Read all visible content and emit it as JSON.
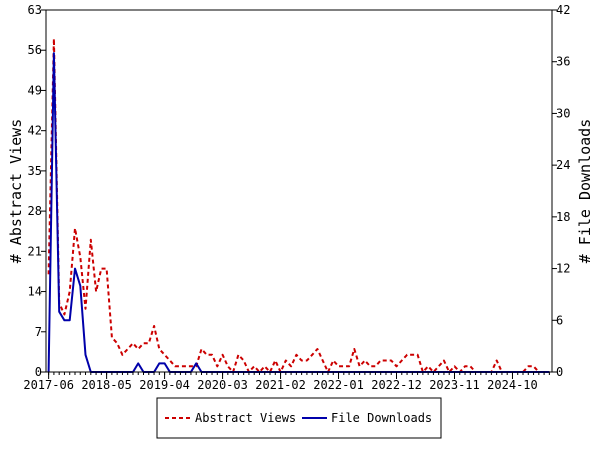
{
  "chart_data": {
    "type": "line",
    "x": [
      "2017-06",
      "2017-07",
      "2017-08",
      "2017-09",
      "2017-10",
      "2017-11",
      "2017-12",
      "2018-01",
      "2018-02",
      "2018-03",
      "2018-04",
      "2018-05",
      "2018-06",
      "2018-07",
      "2018-08",
      "2018-09",
      "2018-10",
      "2018-11",
      "2018-12",
      "2019-01",
      "2019-02",
      "2019-03",
      "2019-04",
      "2019-05",
      "2019-06",
      "2019-07",
      "2019-08",
      "2019-09",
      "2019-10",
      "2019-11",
      "2019-12",
      "2020-01",
      "2020-02",
      "2020-03",
      "2020-04",
      "2020-05",
      "2020-06",
      "2020-07",
      "2020-08",
      "2020-09",
      "2020-10",
      "2020-11",
      "2020-12",
      "2021-01",
      "2021-02",
      "2021-03",
      "2021-04",
      "2021-05",
      "2021-06",
      "2021-07",
      "2021-08",
      "2021-09",
      "2021-10",
      "2021-11",
      "2021-12",
      "2022-01",
      "2022-02",
      "2022-03",
      "2022-04",
      "2022-05",
      "2022-06",
      "2022-07",
      "2022-08",
      "2022-09",
      "2022-10",
      "2022-11",
      "2022-12",
      "2023-01",
      "2023-02",
      "2023-03",
      "2023-04",
      "2023-05",
      "2023-06",
      "2023-07",
      "2023-08",
      "2023-09",
      "2023-10",
      "2023-11",
      "2023-12",
      "2024-01",
      "2024-02",
      "2024-03",
      "2024-04",
      "2024-05",
      "2024-06",
      "2024-07",
      "2024-08",
      "2024-09",
      "2024-10",
      "2024-11",
      "2024-12",
      "2025-01",
      "2025-02",
      "2025-03",
      "2025-04",
      "2025-05"
    ],
    "series": [
      {
        "name": "Abstract Views",
        "axis": "left",
        "color": "#cc0000",
        "dash": true,
        "values": [
          17,
          58,
          12,
          10,
          14,
          25,
          20,
          11,
          23,
          14,
          18,
          18,
          6,
          5,
          3,
          4,
          5,
          4,
          5,
          5,
          8,
          4,
          3,
          2,
          1,
          1,
          1,
          1,
          1,
          4,
          3,
          3,
          1,
          3,
          1,
          0,
          3,
          2,
          0,
          1,
          0,
          1,
          0,
          2,
          0,
          2,
          1,
          3,
          2,
          2,
          3,
          4,
          2,
          0,
          2,
          1,
          1,
          1,
          4,
          1,
          2,
          1,
          1,
          2,
          2,
          2,
          1,
          2,
          3,
          3,
          3,
          0,
          1,
          0,
          1,
          2,
          0,
          1,
          0,
          1,
          1,
          0,
          0,
          0,
          0,
          2,
          0,
          0,
          0,
          0,
          0,
          1,
          1,
          0,
          0,
          0
        ]
      },
      {
        "name": "File Downloads",
        "axis": "right",
        "color": "#0000aa",
        "dash": false,
        "values": [
          0,
          37,
          7,
          6,
          6,
          12,
          10,
          2,
          0,
          0,
          0,
          0,
          0,
          0,
          0,
          0,
          0,
          1,
          0,
          0,
          0,
          1,
          1,
          0,
          0,
          0,
          0,
          0,
          1,
          0,
          0,
          0,
          0,
          0,
          0,
          0,
          0,
          0,
          0,
          0,
          0,
          0,
          0,
          0,
          0,
          0,
          0,
          0,
          0,
          0,
          0,
          0,
          0,
          0,
          0,
          0,
          0,
          0,
          0,
          0,
          0,
          0,
          0,
          0,
          0,
          0,
          0,
          0,
          0,
          0,
          0,
          0,
          0,
          0,
          0,
          0,
          0,
          0,
          0,
          0,
          0,
          0,
          0,
          0,
          0,
          0,
          0,
          0,
          0,
          0,
          0,
          0,
          0,
          0,
          0,
          0
        ]
      }
    ],
    "xtick_labels": [
      "2017-06",
      "2018-05",
      "2019-04",
      "2020-03",
      "2021-02",
      "2022-01",
      "2022-12",
      "2023-11",
      "2024-10"
    ],
    "ylabel": "# Abstract Views",
    "ylabel_right": "# File Downloads",
    "ylim": [
      0,
      63
    ],
    "yticks": [
      "0",
      "7",
      "14",
      "21",
      "28",
      "35",
      "42",
      "49",
      "56",
      "63"
    ],
    "ylim_right": [
      0,
      42
    ],
    "yticks_right": [
      "0",
      "6",
      "12",
      "18",
      "24",
      "30",
      "36",
      "42"
    ],
    "grid": false,
    "legend_placement": "bottom-center"
  }
}
